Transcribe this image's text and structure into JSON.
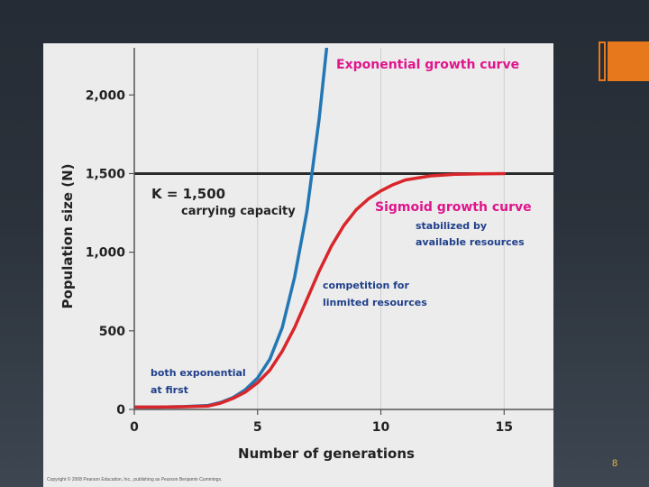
{
  "slide": {
    "number": "8",
    "copyright": "Copyright © 2008 Pearson Education, Inc., publishing as Pearson Benjamin Cummings.",
    "accent_color": "#e8781c"
  },
  "chart_data": {
    "type": "line",
    "xlabel": "Number of generations",
    "ylabel": "Population size (N)",
    "xlim": [
      0,
      17
    ],
    "ylim": [
      0,
      2300
    ],
    "x_ticks": [
      0,
      5,
      10,
      15
    ],
    "x_tick_labels": [
      "0",
      "5",
      "10",
      "15"
    ],
    "y_ticks": [
      0,
      500,
      1000,
      1500,
      2000
    ],
    "y_tick_labels": [
      "0",
      "500",
      "1,000",
      "1,500",
      "2,000"
    ],
    "grid": "vertical",
    "series": [
      {
        "name": "Exponential growth curve",
        "color": "#2277b5",
        "x": [
          0,
          1,
          2,
          3,
          3.5,
          4,
          4.5,
          5,
          5.5,
          6,
          6.5,
          7,
          7.5,
          7.8
        ],
        "y": [
          15,
          15,
          18,
          25,
          45,
          75,
          125,
          200,
          320,
          520,
          840,
          1260,
          1850,
          2300
        ]
      },
      {
        "name": "Sigmoid growth curve",
        "color": "#d8262b",
        "x": [
          0,
          1,
          2,
          3,
          3.5,
          4,
          4.5,
          5,
          5.5,
          6,
          6.5,
          7,
          7.5,
          8,
          8.5,
          9,
          9.5,
          10,
          10.5,
          11,
          12,
          13,
          14,
          15
        ],
        "y": [
          15,
          15,
          17,
          22,
          40,
          70,
          110,
          170,
          250,
          370,
          520,
          700,
          880,
          1040,
          1170,
          1270,
          1340,
          1390,
          1430,
          1460,
          1485,
          1495,
          1498,
          1500
        ]
      }
    ],
    "reference_lines": [
      {
        "y": 1500,
        "label": "K = 1,500",
        "sublabel": "carrying capacity"
      }
    ],
    "annotations": {
      "exponential_title": "Exponential growth curve",
      "sigmoid_title": "Sigmoid growth curve",
      "stabilized_line1": "stabilized by",
      "stabilized_line2": "available resources",
      "competition_line1": "competition for",
      "competition_line2": "linmited resources",
      "both_line1": "both exponential",
      "both_line2": "at first"
    }
  }
}
